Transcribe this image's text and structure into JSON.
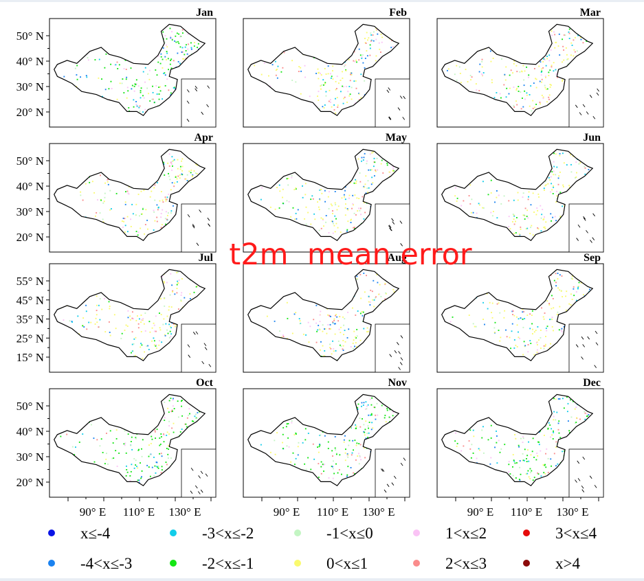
{
  "chart_data": {
    "type": "scatter",
    "title": "t2m  mean error",
    "panels": [
      "Jan",
      "Feb",
      "Mar",
      "Apr",
      "May",
      "Jun",
      "Jul",
      "Aug",
      "Sep",
      "Oct",
      "Nov",
      "Dec"
    ],
    "x_ticks": [
      "90° E",
      "110° E",
      "130° E"
    ],
    "y_ticks": {
      "default": [
        "50° N",
        "40° N",
        "30° N",
        "20° N"
      ],
      "Jul": [
        "55° N",
        "45° N",
        "35° N",
        "25° N",
        "15° N"
      ]
    },
    "legend": [
      {
        "label": "x≤-4",
        "color": "#0a14e6"
      },
      {
        "label": "-3<x≤-2",
        "color": "#12cdea"
      },
      {
        "label": "-1<x≤0",
        "color": "#c3f5c3"
      },
      {
        "label": "1<x≤2",
        "color": "#fac3f5"
      },
      {
        "label": "3<x≤4",
        "color": "#e60a0a"
      },
      {
        "label": "-4<x≤-3",
        "color": "#1a82f0"
      },
      {
        "label": "-2<x≤-1",
        "color": "#14e614"
      },
      {
        "label": "0<x≤1",
        "color": "#fafa6e"
      },
      {
        "label": "2<x≤3",
        "color": "#fa8c8c"
      },
      {
        "label": "x>4",
        "color": "#8c0a0a"
      }
    ],
    "dominant_class_by_month": {
      "Jan": "-2<x≤-1",
      "Feb": "0<x≤1",
      "Mar": "0<x≤1",
      "Apr": "0<x≤1",
      "May": "0<x≤1",
      "Jun": "0<x≤1",
      "Jul": "0<x≤1",
      "Aug": "0<x≤1",
      "Sep": "0<x≤1",
      "Oct": "-2<x≤-1",
      "Nov": "-2<x≤-1",
      "Dec": "-2<x≤-1"
    }
  }
}
